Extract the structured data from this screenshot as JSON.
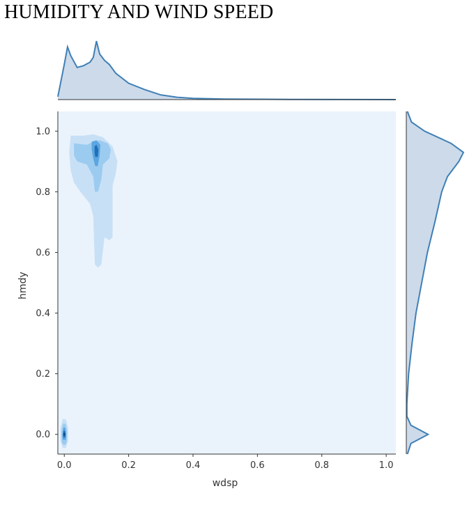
{
  "title": "HUMIDITY AND WIND SPEED",
  "chart_data": {
    "type": "jointplot-kde",
    "xlabel": "wdsp",
    "ylabel": "hmdy",
    "xlim": [
      -0.02,
      1.03
    ],
    "ylim": [
      -0.065,
      1.065
    ],
    "x_ticks": [
      "0.0",
      "0.2",
      "0.4",
      "0.6",
      "0.8",
      "1.0"
    ],
    "y_ticks": [
      "0.0",
      "0.2",
      "0.4",
      "0.6",
      "0.8",
      "1.0"
    ],
    "x_tick_values": [
      0.0,
      0.2,
      0.4,
      0.6,
      0.8,
      1.0
    ],
    "y_tick_values": [
      0.0,
      0.2,
      0.4,
      0.6,
      0.8,
      1.0
    ],
    "grid": false,
    "colors": {
      "background": "#eaf3fc",
      "level1": "#c8e0f6",
      "level2": "#9ccbf0",
      "level3": "#5ba5e0",
      "level4": "#1f6fb8",
      "level5": "#0b3d75",
      "line": "#3f7fb5",
      "fill": "#c6d6e8"
    },
    "x_marginal_density": [
      {
        "x": -0.02,
        "d": 0.05
      },
      {
        "x": 0.0,
        "d": 0.6
      },
      {
        "x": 0.01,
        "d": 0.9
      },
      {
        "x": 0.02,
        "d": 0.75
      },
      {
        "x": 0.04,
        "d": 0.55
      },
      {
        "x": 0.06,
        "d": 0.58
      },
      {
        "x": 0.08,
        "d": 0.64
      },
      {
        "x": 0.09,
        "d": 0.72
      },
      {
        "x": 0.1,
        "d": 1.0
      },
      {
        "x": 0.11,
        "d": 0.78
      },
      {
        "x": 0.125,
        "d": 0.67
      },
      {
        "x": 0.14,
        "d": 0.6
      },
      {
        "x": 0.16,
        "d": 0.45
      },
      {
        "x": 0.2,
        "d": 0.28
      },
      {
        "x": 0.25,
        "d": 0.17
      },
      {
        "x": 0.3,
        "d": 0.08
      },
      {
        "x": 0.35,
        "d": 0.04
      },
      {
        "x": 0.4,
        "d": 0.02
      },
      {
        "x": 0.5,
        "d": 0.01
      },
      {
        "x": 0.7,
        "d": 0.003
      },
      {
        "x": 1.03,
        "d": 0.0
      }
    ],
    "y_marginal_density": [
      {
        "y": -0.065,
        "d": 0.02
      },
      {
        "y": -0.03,
        "d": 0.08
      },
      {
        "y": 0.0,
        "d": 0.38
      },
      {
        "y": 0.03,
        "d": 0.08
      },
      {
        "y": 0.06,
        "d": 0.01
      },
      {
        "y": 0.1,
        "d": 0.01
      },
      {
        "y": 0.2,
        "d": 0.04
      },
      {
        "y": 0.3,
        "d": 0.1
      },
      {
        "y": 0.4,
        "d": 0.17
      },
      {
        "y": 0.5,
        "d": 0.27
      },
      {
        "y": 0.6,
        "d": 0.37
      },
      {
        "y": 0.7,
        "d": 0.5
      },
      {
        "y": 0.8,
        "d": 0.62
      },
      {
        "y": 0.85,
        "d": 0.72
      },
      {
        "y": 0.9,
        "d": 0.92
      },
      {
        "y": 0.93,
        "d": 1.0
      },
      {
        "y": 0.96,
        "d": 0.78
      },
      {
        "y": 1.0,
        "d": 0.32
      },
      {
        "y": 1.03,
        "d": 0.09
      },
      {
        "y": 1.065,
        "d": 0.02
      }
    ],
    "contours": [
      {
        "level": 1,
        "points": [
          [
            0.02,
            0.985
          ],
          [
            0.06,
            0.985
          ],
          [
            0.09,
            0.99
          ],
          [
            0.12,
            0.98
          ],
          [
            0.15,
            0.95
          ],
          [
            0.165,
            0.9
          ],
          [
            0.16,
            0.86
          ],
          [
            0.15,
            0.82
          ],
          [
            0.15,
            0.65
          ],
          [
            0.14,
            0.64
          ],
          [
            0.125,
            0.65
          ],
          [
            0.115,
            0.56
          ],
          [
            0.105,
            0.55
          ],
          [
            0.095,
            0.56
          ],
          [
            0.09,
            0.72
          ],
          [
            0.08,
            0.76
          ],
          [
            0.05,
            0.8
          ],
          [
            0.03,
            0.83
          ],
          [
            0.02,
            0.87
          ],
          [
            0.015,
            0.93
          ]
        ]
      },
      {
        "level": 2,
        "points": [
          [
            0.03,
            0.96
          ],
          [
            0.07,
            0.955
          ],
          [
            0.09,
            0.965
          ],
          [
            0.11,
            0.97
          ],
          [
            0.135,
            0.96
          ],
          [
            0.145,
            0.94
          ],
          [
            0.14,
            0.91
          ],
          [
            0.12,
            0.89
          ],
          [
            0.115,
            0.84
          ],
          [
            0.105,
            0.8
          ],
          [
            0.095,
            0.8
          ],
          [
            0.09,
            0.85
          ],
          [
            0.07,
            0.89
          ],
          [
            0.04,
            0.9
          ],
          [
            0.03,
            0.92
          ]
        ]
      },
      {
        "level": 3,
        "points": [
          [
            0.085,
            0.965
          ],
          [
            0.1,
            0.97
          ],
          [
            0.112,
            0.955
          ],
          [
            0.11,
            0.92
          ],
          [
            0.104,
            0.885
          ],
          [
            0.096,
            0.885
          ],
          [
            0.09,
            0.91
          ],
          [
            0.085,
            0.94
          ]
        ]
      },
      {
        "level": 4,
        "points": [
          [
            0.094,
            0.95
          ],
          [
            0.1,
            0.955
          ],
          [
            0.106,
            0.94
          ],
          [
            0.104,
            0.915
          ],
          [
            0.096,
            0.915
          ],
          [
            0.094,
            0.93
          ]
        ]
      },
      {
        "level": 1,
        "points": [
          [
            -0.005,
            0.05
          ],
          [
            0.005,
            0.05
          ],
          [
            0.012,
            0.02
          ],
          [
            0.012,
            -0.02
          ],
          [
            0.005,
            -0.045
          ],
          [
            -0.005,
            -0.045
          ],
          [
            -0.012,
            -0.02
          ],
          [
            -0.012,
            0.02
          ]
        ]
      },
      {
        "level": 2,
        "points": [
          [
            -0.004,
            0.035
          ],
          [
            0.004,
            0.035
          ],
          [
            0.009,
            0.01
          ],
          [
            0.008,
            -0.025
          ],
          [
            0.003,
            -0.035
          ],
          [
            -0.003,
            -0.035
          ],
          [
            -0.008,
            -0.025
          ],
          [
            -0.009,
            0.01
          ]
        ]
      },
      {
        "level": 3,
        "points": [
          [
            -0.003,
            0.022
          ],
          [
            0.003,
            0.022
          ],
          [
            0.006,
            0.0
          ],
          [
            0.005,
            -0.018
          ],
          [
            -0.005,
            -0.018
          ],
          [
            -0.006,
            0.0
          ]
        ]
      },
      {
        "level": 4,
        "points": [
          [
            -0.002,
            0.012
          ],
          [
            0.002,
            0.012
          ],
          [
            0.004,
            0.0
          ],
          [
            0.003,
            -0.01
          ],
          [
            -0.003,
            -0.01
          ],
          [
            -0.004,
            0.0
          ]
        ]
      },
      {
        "level": 5,
        "points": [
          [
            -0.001,
            0.005
          ],
          [
            0.001,
            0.005
          ],
          [
            0.002,
            0.0
          ],
          [
            0.001,
            -0.004
          ],
          [
            -0.001,
            -0.004
          ],
          [
            -0.002,
            0.0
          ]
        ]
      }
    ]
  }
}
